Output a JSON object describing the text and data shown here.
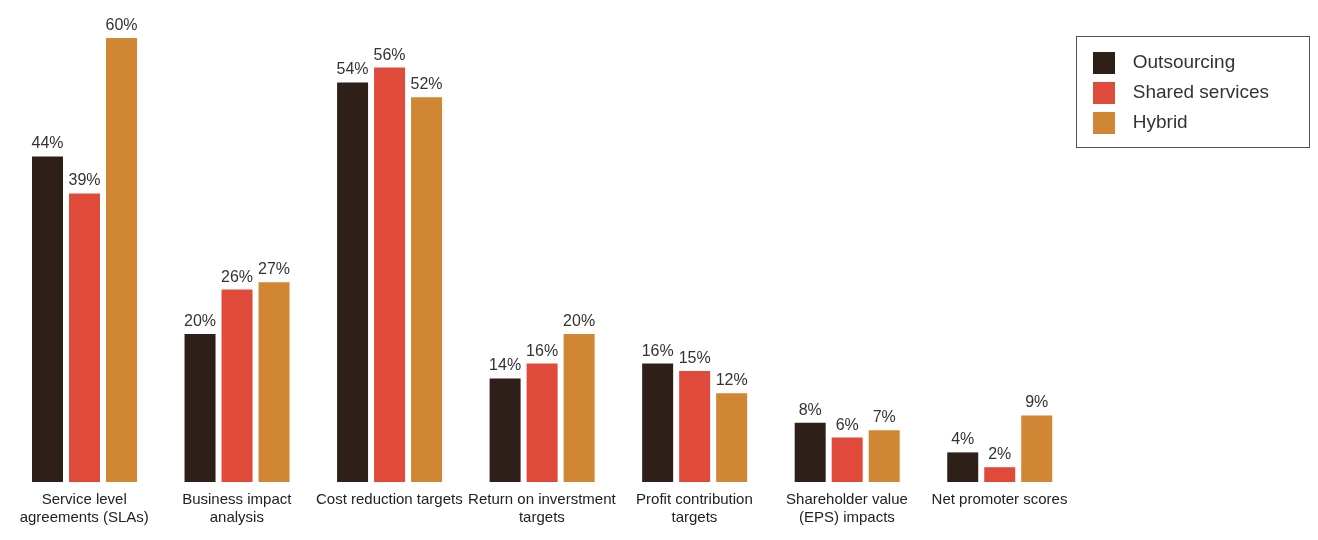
{
  "chart_data": {
    "type": "bar",
    "categories": [
      "Service level agreements (SLAs)",
      "Business impact analysis",
      "Cost reduction targets",
      "Return on inverstment targets",
      "Profit contribution targets",
      "Shareholder value (EPS) impacts",
      "Net promoter scores"
    ],
    "series": [
      {
        "name": "Outsourcing",
        "color": "#2e2018",
        "values": [
          44,
          20,
          54,
          14,
          16,
          8,
          4
        ],
        "value_labels": [
          "44%",
          "20%",
          "54%",
          "14%",
          "16%",
          "8%",
          "4%"
        ]
      },
      {
        "name": "Shared services",
        "color": "#e04a3a",
        "values": [
          39,
          26,
          56,
          16,
          15,
          6,
          2
        ],
        "value_labels": [
          "39%",
          "26%",
          "56%",
          "16%",
          "15%",
          "6%",
          "2%"
        ]
      },
      {
        "name": "Hybrid",
        "color": "#d08632",
        "values": [
          60,
          27,
          52,
          20,
          12,
          7,
          9
        ],
        "value_labels": [
          "60%",
          "27%",
          "52%",
          "20%",
          "12%",
          "7%",
          "9%"
        ]
      }
    ],
    "legend": "top right",
    "grid": false
  }
}
